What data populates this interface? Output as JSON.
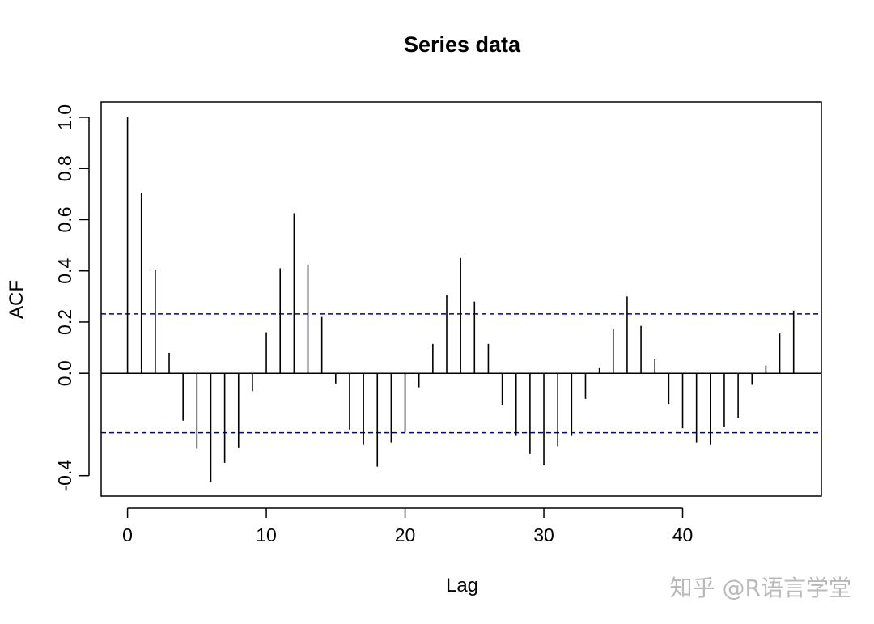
{
  "chart_data": {
    "type": "bar",
    "title": "Series  data",
    "xlabel": "Lag",
    "ylabel": "ACF",
    "xlim": [
      -1.9,
      50
    ],
    "ylim": [
      -0.48,
      1.06
    ],
    "x_ticks": [
      0,
      10,
      20,
      30,
      40
    ],
    "x_tick_labels": [
      "0",
      "10",
      "20",
      "30",
      "40"
    ],
    "y_ticks": [
      -0.4,
      0.0,
      0.2,
      0.4,
      0.6,
      0.8,
      1.0
    ],
    "y_tick_labels": [
      "-0.4",
      "0.0",
      "0.2",
      "0.4",
      "0.6",
      "0.8",
      "1.0"
    ],
    "lags": [
      0,
      1,
      2,
      3,
      4,
      5,
      6,
      7,
      8,
      9,
      10,
      11,
      12,
      13,
      14,
      15,
      16,
      17,
      18,
      19,
      20,
      21,
      22,
      23,
      24,
      25,
      26,
      27,
      28,
      29,
      30,
      31,
      32,
      33,
      34,
      35,
      36,
      37,
      38,
      39,
      40,
      41,
      42,
      43,
      44,
      45,
      46,
      47,
      48
    ],
    "acf": [
      1.0,
      0.705,
      0.405,
      0.08,
      -0.185,
      -0.295,
      -0.425,
      -0.35,
      -0.29,
      -0.07,
      0.16,
      0.41,
      0.625,
      0.425,
      0.22,
      -0.04,
      -0.22,
      -0.28,
      -0.365,
      -0.27,
      -0.23,
      -0.055,
      0.115,
      0.305,
      0.45,
      0.28,
      0.115,
      -0.125,
      -0.245,
      -0.315,
      -0.36,
      -0.285,
      -0.245,
      -0.1,
      0.02,
      0.175,
      0.3,
      0.185,
      0.055,
      -0.12,
      -0.215,
      -0.27,
      -0.28,
      -0.21,
      -0.175,
      -0.045,
      0.03,
      0.155,
      0.245
    ],
    "ci_upper": 0.232,
    "ci_lower": -0.232,
    "ci_color": "#00008b",
    "bar_color": "#000000",
    "grid": false,
    "legend": "none"
  },
  "watermark": "知乎 @R语言学堂"
}
